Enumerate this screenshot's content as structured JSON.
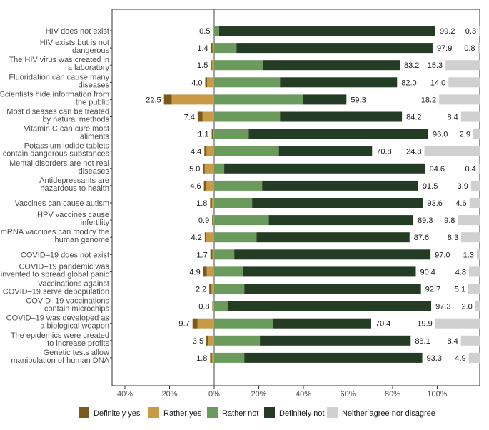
{
  "chart_data": {
    "type": "bar",
    "subtype": "diverging-stacked-horizontal",
    "title": "",
    "xlabel": "",
    "ylabel": "",
    "xlim": [
      -45,
      122
    ],
    "x_ticks": [
      -40,
      -20,
      0,
      20,
      40,
      60,
      80,
      100
    ],
    "x_tick_labels": [
      "40%",
      "20%",
      "0%",
      "20%",
      "40%",
      "60%",
      "80%",
      "100%"
    ],
    "legend_position": "bottom",
    "legend": [
      {
        "key": "definitely_yes",
        "label": "Definitely yes",
        "color": "#7b5a1e"
      },
      {
        "key": "rather_yes",
        "label": "Rather yes",
        "color": "#c89a45"
      },
      {
        "key": "rather_not",
        "label": "Rather not",
        "color": "#6a9a5c"
      },
      {
        "key": "definitely_not",
        "label": "Definitely not",
        "color": "#253c24"
      },
      {
        "key": "neither",
        "label": "Neither agree nor disagree",
        "color": "#d0d0d0"
      }
    ],
    "categories": [
      {
        "label": [
          "HIV does not exist"
        ],
        "definitely_yes": 0.2,
        "rather_yes": 0.3,
        "agree_label": "0.5",
        "rather_not": 2.2,
        "definitely_not": 97.0,
        "disagree_label": "99.2",
        "neither": 0.3,
        "neither_label": "0.3"
      },
      {
        "label": [
          "HIV exists but is not",
          "dangerous"
        ],
        "definitely_yes": 0.6,
        "rather_yes": 0.8,
        "agree_label": "1.4",
        "rather_not": 10.0,
        "definitely_not": 87.9,
        "disagree_label": "97.9",
        "neither": 0.8,
        "neither_label": "0.8"
      },
      {
        "label": [
          "The HIV virus was created in",
          "a laboratory"
        ],
        "definitely_yes": 0.5,
        "rather_yes": 1.0,
        "agree_label": "1.5",
        "rather_not": 22.0,
        "definitely_not": 61.2,
        "disagree_label": "83.2",
        "neither": 15.3,
        "neither_label": "15.3"
      },
      {
        "label": [
          "Fluoridation can cause many",
          "diseases"
        ],
        "definitely_yes": 0.8,
        "rather_yes": 3.2,
        "agree_label": "4.0",
        "rather_not": 29.5,
        "definitely_not": 52.5,
        "disagree_label": "82.0",
        "neither": 14.0,
        "neither_label": "14.0"
      },
      {
        "label": [
          "Scientists hide information from",
          "the public"
        ],
        "definitely_yes": 3.5,
        "rather_yes": 19.0,
        "agree_label": "22.5",
        "rather_not": 40.0,
        "definitely_not": 19.3,
        "disagree_label": "59.3",
        "neither": 18.2,
        "neither_label": "18.2"
      },
      {
        "label": [
          "Most diseases can be treated",
          "by natural methods"
        ],
        "definitely_yes": 2.2,
        "rather_yes": 5.2,
        "agree_label": "7.4",
        "rather_not": 29.5,
        "definitely_not": 54.7,
        "disagree_label": "84.2",
        "neither": 8.4,
        "neither_label": "8.4"
      },
      {
        "label": [
          "Vitamin C can cure most",
          "aliments"
        ],
        "definitely_yes": 0.5,
        "rather_yes": 0.6,
        "agree_label": "1.1",
        "rather_not": 15.5,
        "definitely_not": 80.5,
        "disagree_label": "96.0",
        "neither": 2.9,
        "neither_label": "2.9"
      },
      {
        "label": [
          "Potassium iodide tablets",
          "contain dangerous substances"
        ],
        "definitely_yes": 1.0,
        "rather_yes": 3.4,
        "agree_label": "4.4",
        "rather_not": 29.0,
        "definitely_not": 41.8,
        "disagree_label": "70.8",
        "neither": 24.8,
        "neither_label": "24.8"
      },
      {
        "label": [
          "Mental disorders are not real",
          "diseases"
        ],
        "definitely_yes": 0.8,
        "rather_yes": 4.2,
        "agree_label": "5.0",
        "rather_not": 4.5,
        "definitely_not": 90.1,
        "disagree_label": "94.6",
        "neither": 0.4,
        "neither_label": "0.4"
      },
      {
        "label": [
          "Antidepressants are",
          "hazardous to health"
        ],
        "definitely_yes": 1.0,
        "rather_yes": 3.6,
        "agree_label": "4.6",
        "rather_not": 21.5,
        "definitely_not": 70.0,
        "disagree_label": "91.5",
        "neither": 3.9,
        "neither_label": "3.9"
      },
      {
        "label": [
          "Vaccines can cause autism"
        ],
        "definitely_yes": 0.8,
        "rather_yes": 1.0,
        "agree_label": "1.8",
        "rather_not": 17.0,
        "definitely_not": 76.6,
        "disagree_label": "93.6",
        "neither": 4.6,
        "neither_label": "4.6"
      },
      {
        "label": [
          "HPV vaccines cause",
          "infertility"
        ],
        "definitely_yes": 0.3,
        "rather_yes": 0.6,
        "agree_label": "0.9",
        "rather_not": 24.5,
        "definitely_not": 64.8,
        "disagree_label": "89.3",
        "neither": 9.8,
        "neither_label": "9.8"
      },
      {
        "label": [
          "mRNA vaccines can modify the",
          "human genome"
        ],
        "definitely_yes": 0.7,
        "rather_yes": 3.5,
        "agree_label": "4.2",
        "rather_not": 19.0,
        "definitely_not": 68.6,
        "disagree_label": "87.6",
        "neither": 8.3,
        "neither_label": "8.3"
      },
      {
        "label": [
          "COVID–19 does not exist"
        ],
        "definitely_yes": 0.9,
        "rather_yes": 0.8,
        "agree_label": "1.7",
        "rather_not": 9.0,
        "definitely_not": 88.0,
        "disagree_label": "97.0",
        "neither": 1.3,
        "neither_label": "1.3"
      },
      {
        "label": [
          "COVID–19 pandemic was",
          "invented to spread global panic"
        ],
        "definitely_yes": 1.6,
        "rather_yes": 3.3,
        "agree_label": "4.9",
        "rather_not": 13.0,
        "definitely_not": 77.4,
        "disagree_label": "90.4",
        "neither": 4.8,
        "neither_label": "4.8"
      },
      {
        "label": [
          "Vaccinations against",
          "COVID–19 serve depopulation"
        ],
        "definitely_yes": 1.0,
        "rather_yes": 1.2,
        "agree_label": "2.2",
        "rather_not": 13.5,
        "definitely_not": 79.2,
        "disagree_label": "92.7",
        "neither": 5.1,
        "neither_label": "5.1"
      },
      {
        "label": [
          "COVID–19 vaccinations",
          "contain microchips"
        ],
        "definitely_yes": 0.4,
        "rather_yes": 0.4,
        "agree_label": "0.8",
        "rather_not": 6.0,
        "definitely_not": 91.3,
        "disagree_label": "97.3",
        "neither": 2.0,
        "neither_label": "2.0"
      },
      {
        "label": [
          "COVID–19 was developed as",
          "a biological weapon"
        ],
        "definitely_yes": 2.2,
        "rather_yes": 7.5,
        "agree_label": "9.7",
        "rather_not": 26.5,
        "definitely_not": 43.9,
        "disagree_label": "70.4",
        "neither": 19.9,
        "neither_label": "19.9"
      },
      {
        "label": [
          "The epidemics were created",
          "to increase profits"
        ],
        "definitely_yes": 0.8,
        "rather_yes": 2.7,
        "agree_label": "3.5",
        "rather_not": 20.5,
        "definitely_not": 67.6,
        "disagree_label": "88.1",
        "neither": 8.4,
        "neither_label": "8.4"
      },
      {
        "label": [
          "Genetic tests allow",
          "manipulation of human DNA"
        ],
        "definitely_yes": 0.8,
        "rather_yes": 1.0,
        "agree_label": "1.8",
        "rather_not": 13.5,
        "definitely_not": 79.8,
        "disagree_label": "93.3",
        "neither": 4.9,
        "neither_label": "4.9"
      }
    ]
  }
}
